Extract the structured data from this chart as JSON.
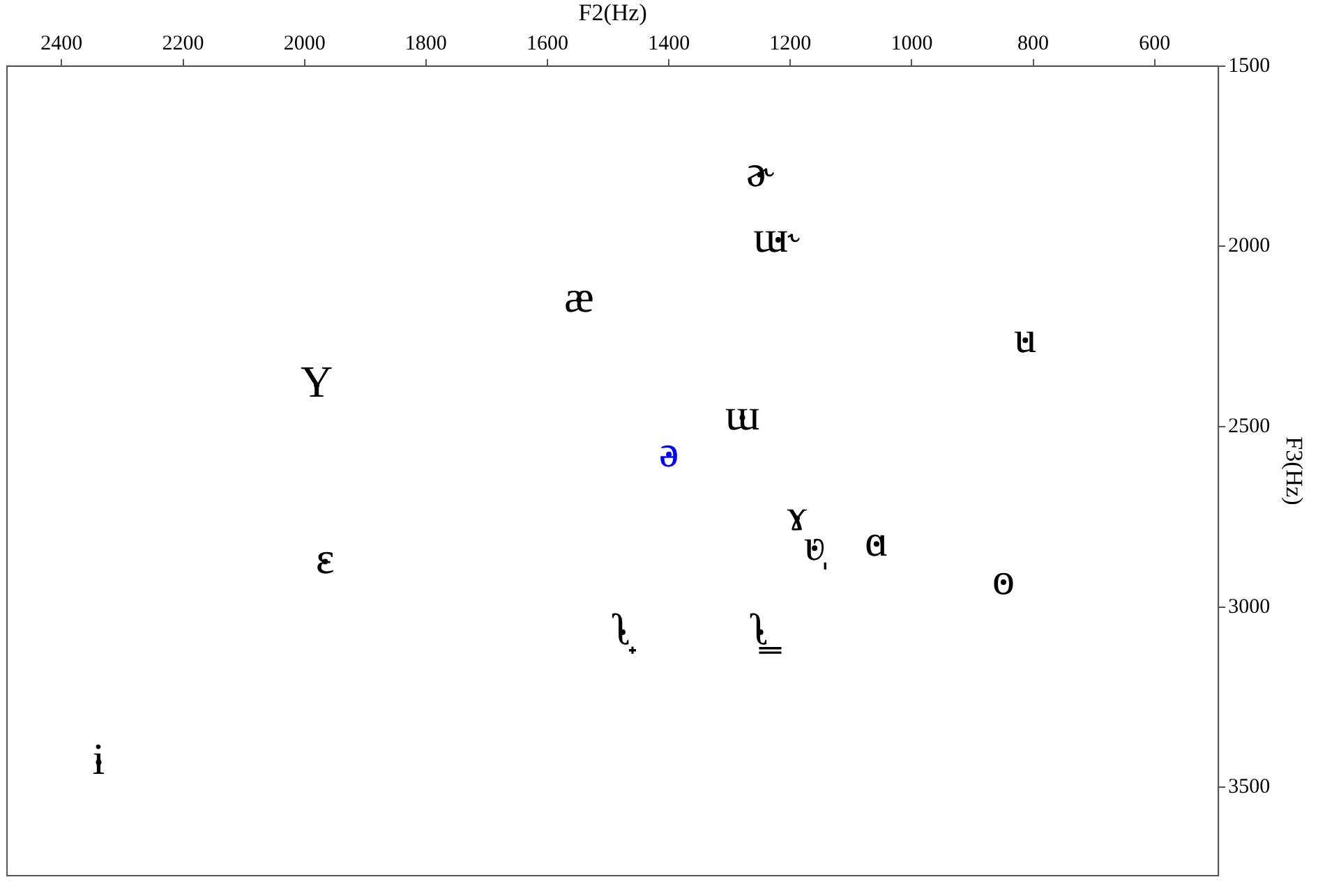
{
  "chart_data": {
    "type": "scatter",
    "xlabel": "F2(Hz)",
    "ylabel": "F3(Hz)",
    "x": [
      1250,
      1220,
      1548,
      813,
      1980,
      1279,
      1400,
      1189,
      1160,
      1058,
      849,
      1966,
      1476,
      1249,
      2339
    ],
    "values": [
      1801,
      1982,
      2148,
      2260,
      2385,
      2475,
      2577,
      2754,
      2837,
      2825,
      2931,
      2874,
      3070,
      3070,
      3431
    ],
    "value_labels": [
      "ɚ",
      "ɯ˞",
      "æ",
      "u",
      "Y",
      "ɯ",
      "ə",
      "ɤ",
      "ʋ̩",
      "ɑ",
      "o",
      "ɛ",
      "ʅ̟",
      "ʅ̳",
      "i"
    ],
    "colors": [
      "#000000",
      "#000000",
      "#000000",
      "#000000",
      "#000000",
      "#000000",
      "#0000ff",
      "#000000",
      "#000000",
      "#000000",
      "#000000",
      "#000000",
      "#000000",
      "#000000",
      "#000000"
    ],
    "xlim": [
      2490,
      495
    ],
    "ylim": [
      3745,
      1500
    ],
    "xticks": [
      2400,
      2200,
      2000,
      1800,
      1600,
      1400,
      1200,
      1000,
      800,
      600
    ],
    "yticks": [
      1500,
      2000,
      2500,
      3000,
      3500
    ],
    "grid": false,
    "legend": false
  }
}
